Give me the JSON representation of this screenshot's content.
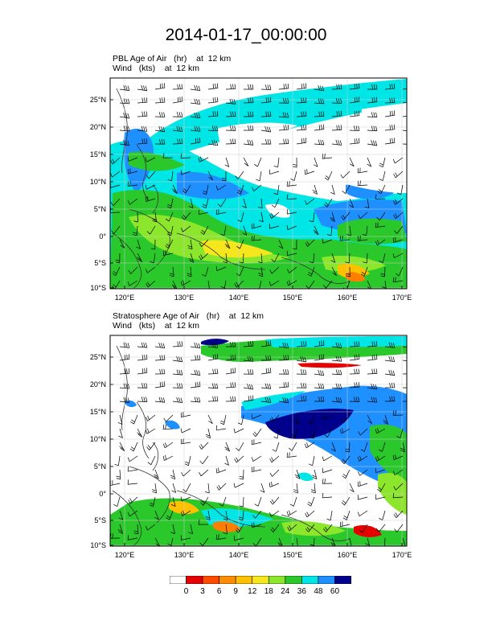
{
  "title": "2014-01-17_00:00:00",
  "panels": [
    {
      "id": "pbl",
      "line1": {
        "field": "PBL Age of Air",
        "units": "(hr)",
        "level": "at  12 km"
      },
      "line2": {
        "field": "Wind",
        "units": "(kts)",
        "level": "at  12 km"
      },
      "dominant_colors": [
        "#00e6e6",
        "#1e90ff",
        "#2bc82b",
        "#8ce62b",
        "#f5e61e",
        "#ff7e00",
        "#e60000"
      ]
    },
    {
      "id": "strat",
      "line1": {
        "field": "Stratosphere Age of Air",
        "units": "(hr)",
        "level": "at  12 km"
      },
      "line2": {
        "field": "Wind",
        "units": "(kts)",
        "level": "at  12 km"
      },
      "dominant_colors": [
        "#00e6e6",
        "#1e90ff",
        "#00008c",
        "#2bc82b",
        "#8ce62b",
        "#ff7e00",
        "#e60000"
      ]
    }
  ],
  "axes": {
    "lat_labels": [
      "25°N",
      "20°N",
      "15°N",
      "10°N",
      "5°N",
      "0°",
      "5°S",
      "10°S"
    ],
    "lon_labels": [
      "120°E",
      "130°E",
      "140°E",
      "150°E",
      "160°E",
      "170°E"
    ]
  },
  "colorbar": {
    "labels": [
      "0",
      "3",
      "6",
      "9",
      "12",
      "18",
      "24",
      "36",
      "48",
      "60"
    ],
    "colors": [
      "#ffffff",
      "#e60000",
      "#ff4a00",
      "#ff8c00",
      "#ffc000",
      "#f5e61e",
      "#8ce62b",
      "#2bc82b",
      "#00e6e6",
      "#1e90ff",
      "#00008c"
    ]
  }
}
